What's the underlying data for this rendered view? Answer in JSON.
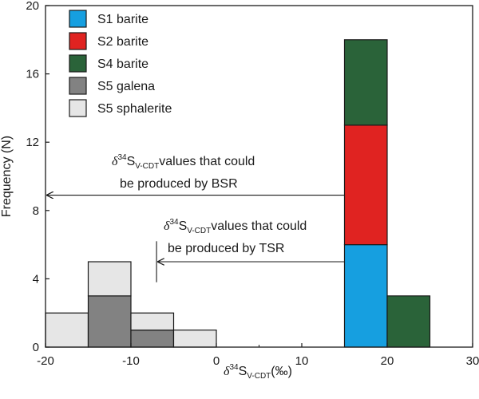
{
  "chart_data": {
    "type": "bar",
    "title": "",
    "xlabel": {
      "delta": "δ",
      "sup": "34",
      "main": "S",
      "sub": "V-CDT",
      "tail": "(‰)"
    },
    "ylabel": "Frequency (N)",
    "xlim": [
      -20,
      30
    ],
    "ylim": [
      0,
      20
    ],
    "xticks": [
      "-20",
      "-10",
      "0",
      "10",
      "20",
      "30"
    ],
    "yticks": [
      "0",
      "4",
      "8",
      "12",
      "16",
      "20"
    ],
    "bin_width": 5,
    "bins": [
      -20,
      -15,
      -10,
      -5,
      0,
      5,
      10,
      15,
      20,
      25
    ],
    "series": [
      {
        "name": "S1 barite",
        "color": "#169fe0",
        "values": [
          0,
          0,
          0,
          0,
          0,
          0,
          0,
          6,
          0,
          0
        ]
      },
      {
        "name": "S2 barite",
        "color": "#e02321",
        "values": [
          0,
          0,
          0,
          0,
          0,
          0,
          0,
          7,
          0,
          0
        ]
      },
      {
        "name": "S4 barite",
        "color": "#2a6339",
        "values": [
          0,
          0,
          0,
          0,
          0,
          0,
          0,
          5,
          3,
          0
        ]
      },
      {
        "name": "S5 galena",
        "color": "#828282",
        "values": [
          0,
          3,
          1,
          0,
          0,
          0,
          0,
          0,
          0,
          0
        ]
      },
      {
        "name": "S5 sphalerite",
        "color": "#e6e6e6",
        "values": [
          2,
          2,
          1,
          1,
          0,
          0,
          0,
          0,
          0,
          0
        ]
      }
    ],
    "annotations": [
      {
        "delta": "δ",
        "sup": "34",
        "main": "S",
        "sub": "V-CDT",
        "text1": "values that could",
        "text2": "be produced by BSR",
        "arrow_from_x": 15,
        "arrow_to_x": -20,
        "arrow_y": 8.9
      },
      {
        "delta": "δ",
        "sup": "34",
        "main": "S",
        "sub": "V-CDT",
        "text1": "values that could",
        "text2": "be produced by TSR",
        "arrow_from_x": 15,
        "arrow_to_x": -7,
        "arrow_y": 5.0,
        "bar_x": -7,
        "bar_y_range": [
          3.8,
          6.2
        ]
      }
    ],
    "legend_placement": "top-left",
    "grid": false
  }
}
